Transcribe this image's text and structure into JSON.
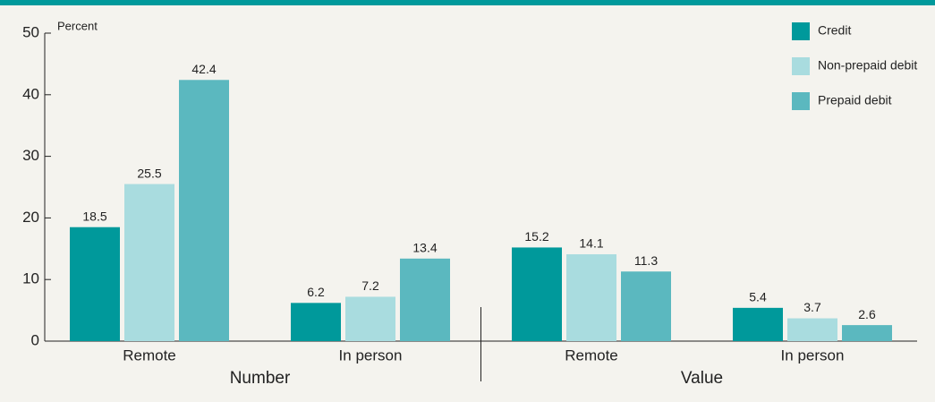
{
  "chart_data": {
    "type": "bar",
    "y_axis_label": "Percent",
    "groups": [
      "Number",
      "Value"
    ],
    "categories": [
      "Remote",
      "In person",
      "Remote",
      "In person"
    ],
    "series": [
      {
        "name": "Credit",
        "color": "#00999b",
        "values": [
          18.5,
          6.2,
          15.2,
          5.4
        ]
      },
      {
        "name": "Non-prepaid debit",
        "color": "#a9dcdf",
        "values": [
          25.5,
          7.2,
          14.1,
          3.7
        ]
      },
      {
        "name": "Prepaid debit",
        "color": "#5bb8bf",
        "values": [
          42.4,
          13.4,
          11.3,
          2.6
        ]
      }
    ],
    "ylim": [
      0,
      50
    ],
    "yticks": [
      0,
      10,
      20,
      30,
      40,
      50
    ],
    "legend": "upper right"
  }
}
